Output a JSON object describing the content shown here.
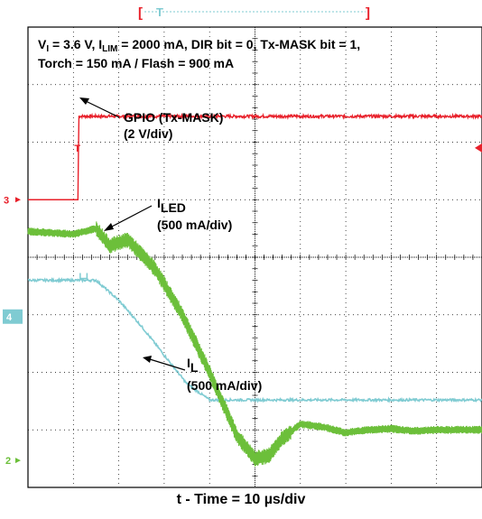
{
  "chart_data": {
    "type": "line",
    "title_lines": [
      {
        "parts": [
          "V",
          "I",
          " = 3.6 V, I",
          "LIM",
          " = 2000 mA, DIR bit = 0, Tx-MASK bit = 1,"
        ]
      },
      {
        "parts": [
          "Torch = 150 mA / Flash = 900 mA"
        ]
      }
    ],
    "xlabel": "t - Time = 10 µs/div",
    "grid": true,
    "divisions": {
      "x": 10,
      "y": 8
    },
    "series": [
      {
        "name": "GPIO (Tx-MASK)",
        "scale": "(2 V/div)",
        "color": "#e8202a",
        "marker": "3",
        "trigger_marker": "T",
        "ground_div": 5.0,
        "x": [
          0,
          1.1,
          1.12,
          10
        ],
        "y": [
          0,
          0,
          1.45,
          1.45
        ]
      },
      {
        "name": "I_LED",
        "name_main": "I",
        "name_sub": "LED",
        "scale": "(500 mA/div)",
        "color": "#7fcbd2",
        "marker": "4",
        "ground_div": 3.0,
        "x": [
          0,
          1.5,
          2.0,
          2.5,
          3.0,
          3.5,
          4.0,
          10
        ],
        "y": [
          3.6,
          3.6,
          3.25,
          2.8,
          2.3,
          1.8,
          1.52,
          1.52
        ]
      },
      {
        "name": "I_L",
        "name_main": "I",
        "name_sub": "L",
        "scale": "(500 mA/div)",
        "color": "#6cbf3a",
        "marker": "2",
        "ground_div": 0.5,
        "x": [
          0,
          1.0,
          1.5,
          1.8,
          2.2,
          2.8,
          3.4,
          4.0,
          4.6,
          5.0,
          5.3,
          5.6,
          6.0,
          6.5,
          7.0,
          7.5,
          8.0,
          8.5,
          9.0,
          10
        ],
        "y": [
          4.45,
          4.4,
          4.5,
          4.2,
          4.3,
          3.8,
          3.0,
          2.0,
          0.9,
          0.5,
          0.55,
          0.85,
          1.1,
          1.05,
          0.95,
          1.0,
          1.02,
          0.98,
          1.0,
          1.0
        ]
      }
    ],
    "annotations": [
      {
        "target": "GPIO (Tx-MASK)",
        "lines": [
          "GPIO (Tx-MASK)",
          "(2 V/div)"
        ]
      },
      {
        "target": "I_LED",
        "lines": [
          "I_LED",
          "(500 mA/div)"
        ]
      },
      {
        "target": "I_L",
        "lines": [
          "I_L",
          "(500 mA/div)"
        ]
      }
    ],
    "trigger_bar": {
      "left": "[",
      "mark": "T",
      "right": "]"
    }
  }
}
